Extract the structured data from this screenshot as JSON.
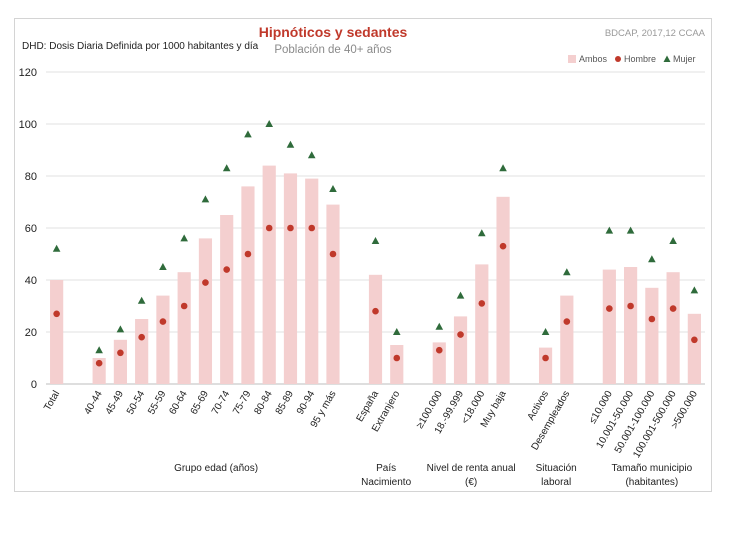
{
  "chart_data": {
    "type": "bar",
    "title": "Hipnóticos y sedantes",
    "subtitle": "Población de 40+ años",
    "source": "BDCAP, 2017,12 CCAA",
    "ylabel": "DHD: Dosis Diaria Definida por 1000 habitantes  y día",
    "ylim": [
      0,
      120
    ],
    "yticks": [
      0,
      20,
      40,
      60,
      80,
      100,
      120
    ],
    "legend": [
      "Ambos",
      "Hombre",
      "Mujer"
    ],
    "legend_position": "top-right",
    "categories": [
      "Total",
      "40-44",
      "45-49",
      "50-54",
      "55-59",
      "60-64",
      "65-69",
      "70-74",
      "75-79",
      "80-84",
      "85-89",
      "90-94",
      "95 y más",
      "España",
      "Extranjero",
      "≥100.000",
      "18.-99.999",
      "<18.000",
      "Muy baja",
      "Activos",
      "Desempleados",
      "≤10.000",
      "10.001-50.000",
      "50.001-100.000",
      "100.001-500.000",
      ">500.000"
    ],
    "slots": [
      0,
      2,
      3,
      4,
      5,
      6,
      7,
      8,
      9,
      10,
      11,
      12,
      13,
      15,
      16,
      18,
      19,
      20,
      21,
      23,
      24,
      26,
      27,
      28,
      29,
      30
    ],
    "series": [
      {
        "name": "Ambos",
        "type": "bar",
        "values": [
          40,
          10,
          17,
          25,
          34,
          43,
          56,
          65,
          76,
          84,
          81,
          79,
          69,
          42,
          15,
          16,
          26,
          46,
          72,
          14,
          34,
          44,
          45,
          37,
          43,
          27
        ]
      },
      {
        "name": "Hombre",
        "type": "dot",
        "values": [
          27,
          8,
          12,
          18,
          24,
          30,
          39,
          44,
          50,
          60,
          60,
          60,
          50,
          28,
          10,
          13,
          19,
          31,
          53,
          10,
          24,
          29,
          30,
          25,
          29,
          17
        ]
      },
      {
        "name": "Mujer",
        "type": "triangle",
        "values": [
          52,
          13,
          21,
          32,
          45,
          56,
          71,
          83,
          96,
          100,
          92,
          88,
          75,
          55,
          20,
          22,
          34,
          58,
          83,
          20,
          43,
          59,
          59,
          48,
          55,
          36
        ]
      }
    ],
    "groups": [
      {
        "label": [
          "Grupo edad (años)"
        ],
        "first": 1,
        "last": 12
      },
      {
        "label": [
          "País",
          "Nacimiento"
        ],
        "first": 13,
        "last": 14
      },
      {
        "label": [
          "Nivel de renta anual",
          "(€)"
        ],
        "first": 15,
        "last": 18
      },
      {
        "label": [
          "Situación",
          "laboral"
        ],
        "first": 19,
        "last": 20
      },
      {
        "label": [
          "Tamaño municipio",
          "(habitantes)"
        ],
        "first": 21,
        "last": 25
      }
    ],
    "colors": {
      "bar": "#f4cfcf",
      "dot": "#c0392b",
      "triangle": "#2f6b3b",
      "title": "#c0392b",
      "grid": "#e0e0e0"
    }
  }
}
